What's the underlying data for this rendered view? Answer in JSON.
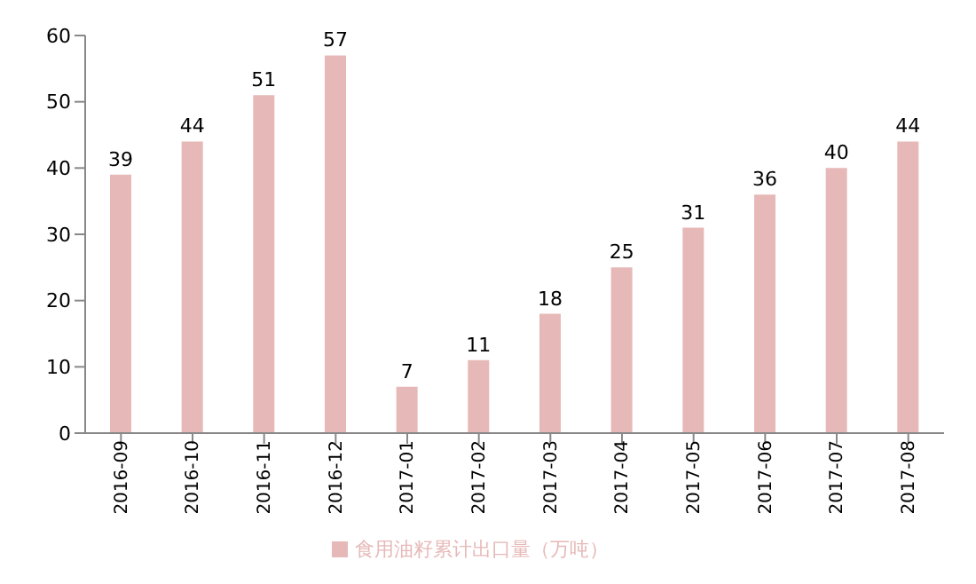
{
  "chart_data": {
    "type": "bar",
    "categories": [
      "2016-09",
      "2016-10",
      "2016-11",
      "2016-12",
      "2017-01",
      "2017-02",
      "2017-03",
      "2017-04",
      "2017-05",
      "2017-06",
      "2017-07",
      "2017-08"
    ],
    "series": [
      {
        "name": "食用油籽累计出口量（万吨）",
        "color": "#e6b9b8",
        "values": [
          39,
          44,
          51,
          57,
          7,
          11,
          18,
          25,
          31,
          36,
          40,
          44
        ]
      }
    ],
    "ylim": [
      0,
      60
    ],
    "yticks": [
      0,
      10,
      20,
      30,
      40,
      50,
      60
    ],
    "grid": false,
    "legend": "bottom",
    "data_labels": true
  }
}
